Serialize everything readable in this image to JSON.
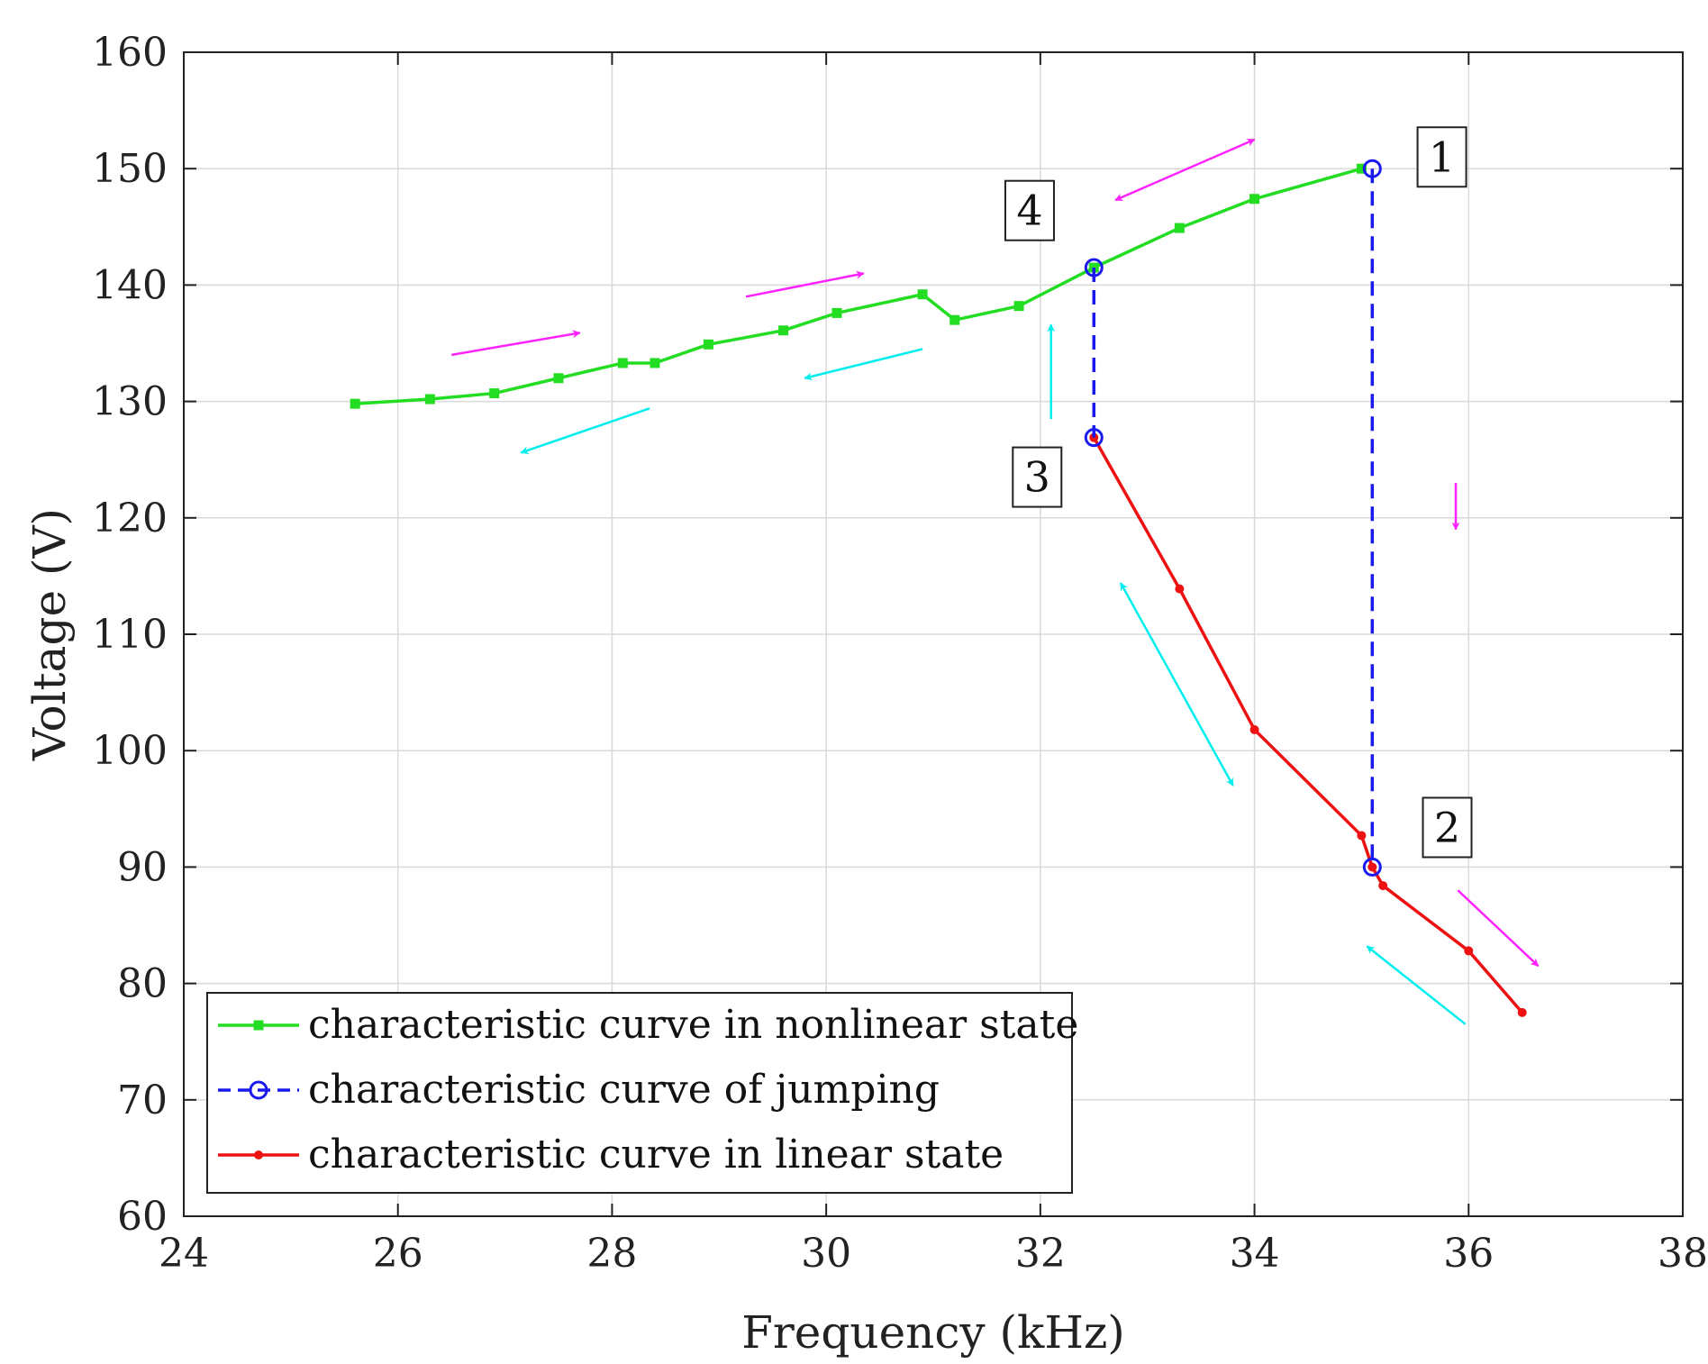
{
  "chart_data": {
    "type": "line",
    "title": "",
    "xlabel": "Frequency (kHz)",
    "ylabel": "Voltage (V)",
    "xlim": [
      24,
      38
    ],
    "ylim": [
      60,
      160
    ],
    "xticks": [
      24,
      26,
      28,
      30,
      32,
      34,
      36,
      38
    ],
    "yticks": [
      60,
      70,
      80,
      90,
      100,
      110,
      120,
      130,
      140,
      150,
      160
    ],
    "grid": true,
    "legend_position": "bottom-left",
    "series": [
      {
        "name": "characteristic curve in nonlinear state",
        "color": "#22dd22",
        "style": "solid",
        "marker": "square",
        "x": [
          25.6,
          26.3,
          26.9,
          27.5,
          28.1,
          28.4,
          28.9,
          29.6,
          30.1,
          30.9,
          31.2,
          31.8,
          32.5,
          33.3,
          34.0,
          35.0
        ],
        "y": [
          129.8,
          130.2,
          130.7,
          132.0,
          133.3,
          133.3,
          134.9,
          136.1,
          137.6,
          139.2,
          137.0,
          138.2,
          141.5,
          144.9,
          147.4,
          150.0
        ]
      },
      {
        "name": "characteristic curve of jumping",
        "color": "#1a1aee",
        "style": "dashed",
        "marker": "circle",
        "segments": [
          {
            "x": [
              35.1,
              35.1
            ],
            "y": [
              150.0,
              90.0
            ]
          },
          {
            "x": [
              32.5,
              32.5
            ],
            "y": [
              141.5,
              126.9
            ]
          }
        ]
      },
      {
        "name": "characteristic curve in linear state",
        "color": "#ee1111",
        "style": "solid",
        "marker": "dot",
        "x": [
          32.5,
          33.3,
          34.0,
          35.0,
          35.1,
          35.2,
          36.0,
          36.5
        ],
        "y": [
          126.9,
          113.9,
          101.8,
          92.7,
          90.0,
          88.4,
          82.8,
          77.5
        ]
      }
    ],
    "annotations": [
      {
        "label": "1",
        "x": 35.75,
        "y": 151
      },
      {
        "label": "2",
        "x": 35.8,
        "y": 93.4
      },
      {
        "label": "3",
        "x": 31.97,
        "y": 123.5
      },
      {
        "label": "4",
        "x": 31.9,
        "y": 146.4
      }
    ],
    "arrows": [
      {
        "color": "#ff22ff",
        "from": [
          26.5,
          134.0
        ],
        "to": [
          27.7,
          135.9
        ],
        "double": false
      },
      {
        "color": "#ff22ff",
        "from": [
          29.25,
          139.0
        ],
        "to": [
          30.35,
          141.0
        ],
        "double": false
      },
      {
        "color": "#ff22ff",
        "from": [
          32.7,
          147.3
        ],
        "to": [
          34.0,
          152.5
        ],
        "double": true
      },
      {
        "color": "#ff22ff",
        "from": [
          35.88,
          123.0
        ],
        "to": [
          35.88,
          119.0
        ],
        "double": false
      },
      {
        "color": "#ff22ff",
        "from": [
          35.9,
          88.0
        ],
        "to": [
          36.65,
          81.5
        ],
        "double": false
      },
      {
        "color": "#00eeee",
        "from": [
          28.35,
          129.4
        ],
        "to": [
          27.15,
          125.6
        ],
        "double": false
      },
      {
        "color": "#00eeee",
        "from": [
          30.9,
          134.5
        ],
        "to": [
          29.8,
          132.0
        ],
        "double": false
      },
      {
        "color": "#00eeee",
        "from": [
          32.1,
          128.5
        ],
        "to": [
          32.1,
          136.6
        ],
        "double": false
      },
      {
        "color": "#00eeee",
        "from": [
          32.75,
          114.4
        ],
        "to": [
          33.8,
          97.0
        ],
        "double": true
      },
      {
        "color": "#00eeee",
        "from": [
          35.97,
          76.5
        ],
        "to": [
          35.05,
          83.2
        ],
        "double": false
      }
    ]
  }
}
